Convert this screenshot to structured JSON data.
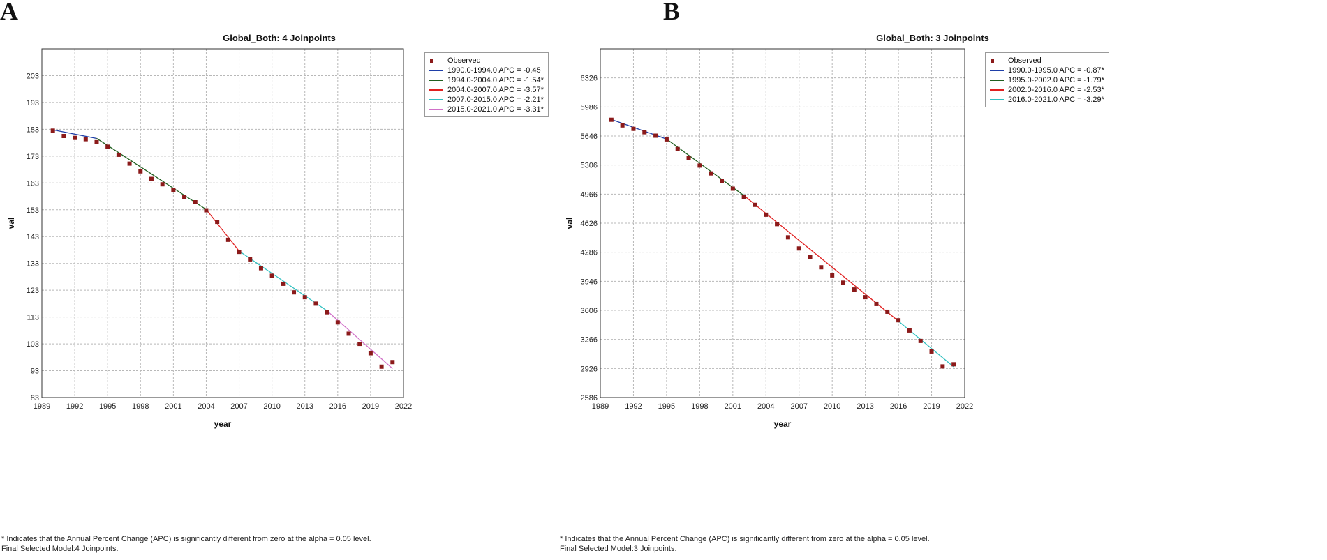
{
  "chart_data": [
    {
      "panel_label": "A",
      "type": "line",
      "title": "Global_Both: 4 Joinpoints",
      "xlabel": "year",
      "ylabel": "val",
      "xlim": [
        1989,
        2022
      ],
      "ylim": [
        83,
        213
      ],
      "x_ticks": [
        "1989",
        "1992",
        "1995",
        "1998",
        "2001",
        "2004",
        "2007",
        "2010",
        "2013",
        "2016",
        "2019",
        "2022"
      ],
      "y_ticks": [
        "83",
        "93",
        "103",
        "113",
        "123",
        "133",
        "143",
        "153",
        "163",
        "173",
        "183",
        "193",
        "203"
      ],
      "grid": true,
      "legend_position": "right",
      "observed": {
        "name": "Observed",
        "color": "#8b1a1a",
        "x": [
          1990,
          1991,
          1992,
          1993,
          1994,
          1995,
          1996,
          1997,
          1998,
          1999,
          2000,
          2001,
          2002,
          2003,
          2004,
          2005,
          2006,
          2007,
          2008,
          2009,
          2010,
          2011,
          2012,
          2013,
          2014,
          2015,
          2016,
          2017,
          2018,
          2019,
          2020,
          2021
        ],
        "y": [
          182.5,
          180.5,
          179.8,
          179.3,
          178.2,
          176.5,
          173.5,
          170.2,
          167.3,
          164.5,
          162.5,
          160.3,
          157.8,
          155.8,
          152.8,
          148.5,
          141.8,
          137.3,
          134.5,
          131.2,
          128.4,
          125.4,
          122.2,
          120.4,
          118.0,
          114.8,
          111.0,
          106.8,
          103.0,
          99.5,
          94.5,
          96.2
        ]
      },
      "series": [
        {
          "name": "1990.0-1994.0 APC  = -0.45",
          "color": "#1f3fa8",
          "x": [
            1990,
            1994
          ],
          "y": [
            182.8,
            179.6
          ]
        },
        {
          "name": "1994.0-2004.0 APC  = -1.54*",
          "color": "#1f5f1f",
          "x": [
            1994,
            2004
          ],
          "y": [
            179.6,
            153.1
          ]
        },
        {
          "name": "2004.0-2007.0 APC  = -3.57*",
          "color": "#e02020",
          "x": [
            2004,
            2007
          ],
          "y": [
            153.1,
            137.6
          ]
        },
        {
          "name": "2007.0-2015.0 APC  = -2.21*",
          "color": "#30c0c0",
          "x": [
            2007,
            2015
          ],
          "y": [
            137.6,
            115.4
          ]
        },
        {
          "name": "2015.0-2021.0 APC  = -3.31*",
          "color": "#d070c8",
          "x": [
            2015,
            2021
          ],
          "y": [
            115.4,
            93.8
          ]
        }
      ],
      "footnote_1": "* Indicates that the Annual Percent Change (APC) is significantly different from zero at the alpha = 0.05 level.",
      "footnote_2": "Final Selected Model:4 Joinpoints."
    },
    {
      "panel_label": "B",
      "type": "line",
      "title": "Global_Both: 3 Joinpoints",
      "xlabel": "year",
      "ylabel": "val",
      "xlim": [
        1989,
        2022
      ],
      "ylim": [
        2586,
        6666
      ],
      "x_ticks": [
        "1989",
        "1992",
        "1995",
        "1998",
        "2001",
        "2004",
        "2007",
        "2010",
        "2013",
        "2016",
        "2019",
        "2022"
      ],
      "y_ticks": [
        "2586",
        "2926",
        "3266",
        "3606",
        "3946",
        "4286",
        "4626",
        "4966",
        "5306",
        "5646",
        "5986",
        "6326"
      ],
      "grid": true,
      "legend_position": "right",
      "observed": {
        "name": "Observed",
        "color": "#8b1a1a",
        "x": [
          1990,
          1991,
          1992,
          1993,
          1994,
          1995,
          1996,
          1997,
          1998,
          1999,
          2000,
          2001,
          2002,
          2003,
          2004,
          2005,
          2006,
          2007,
          2008,
          2009,
          2010,
          2011,
          2012,
          2013,
          2014,
          2015,
          2016,
          2017,
          2018,
          2019,
          2020,
          2021
        ],
        "y": [
          5836,
          5770,
          5730,
          5690,
          5650,
          5606,
          5493,
          5385,
          5300,
          5208,
          5120,
          5030,
          4930,
          4840,
          4725,
          4615,
          4460,
          4330,
          4230,
          4110,
          4015,
          3930,
          3850,
          3760,
          3680,
          3590,
          3490,
          3370,
          3248,
          3125,
          2950,
          2975
        ],
        "_note": ""
      },
      "series": [
        {
          "name": "1990.0-1995.0 APC  = -0.87*",
          "color": "#1f3fa8",
          "x": [
            1990,
            1995
          ],
          "y": [
            5840,
            5610
          ]
        },
        {
          "name": "1995.0-2002.0 APC  = -1.79*",
          "color": "#1f5f1f",
          "x": [
            1995,
            2002
          ],
          "y": [
            5610,
            4950
          ]
        },
        {
          "name": "2002.0-2016.0 APC  = -2.53*",
          "color": "#e02020",
          "x": [
            2002,
            2016
          ],
          "y": [
            4950,
            3480
          ]
        },
        {
          "name": "2016.0-2021.0 APC  = -3.29*",
          "color": "#30c0c0",
          "x": [
            2016,
            2021
          ],
          "y": [
            3480,
            2945
          ]
        }
      ],
      "footnote_1": "* Indicates that the Annual Percent Change (APC) is significantly different from zero at the alpha = 0.05 level.",
      "footnote_2": "Final Selected Model:3 Joinpoints."
    }
  ]
}
